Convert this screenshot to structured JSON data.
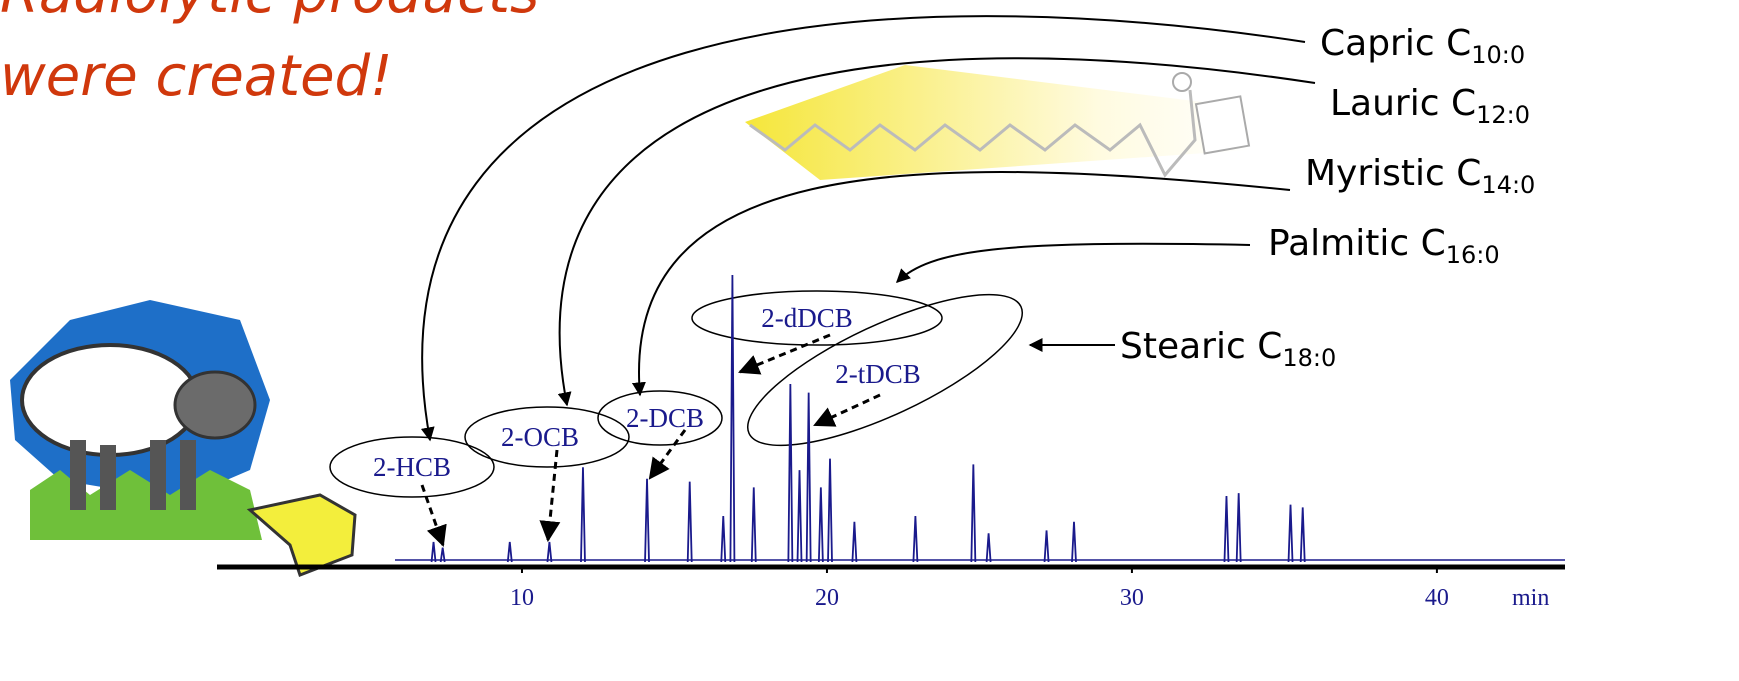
{
  "slide": {
    "title_lines": [
      "Radiolytic products",
      "were created!"
    ],
    "fatty_acids": [
      {
        "name": "Capric C",
        "subscript": "10:0"
      },
      {
        "name": "Lauric C",
        "subscript": "12:0"
      },
      {
        "name": "Myristic C",
        "subscript": "14:0"
      },
      {
        "name": "Palmitic C",
        "subscript": "16:0"
      },
      {
        "name": "Stearic C",
        "subscript": "18:0"
      }
    ],
    "products": [
      "2-HCB",
      "2-OCB",
      "2-DCB",
      "2-dDCB",
      "2-tDCB"
    ]
  },
  "chart_data": {
    "type": "chromatogram",
    "x_label": "min",
    "color": "#1a1a8c",
    "x": [
      7.1,
      7.4,
      9.6,
      10.9,
      12.0,
      14.1,
      15.5,
      16.6,
      16.9,
      17.6,
      18.8,
      19.1,
      19.4,
      19.8,
      20.1,
      20.9,
      22.9,
      24.8,
      25.3,
      27.2,
      28.1,
      33.1,
      33.5,
      35.2,
      35.6
    ],
    "values": [
      7,
      5,
      7,
      7,
      33,
      29,
      28,
      16,
      100,
      26,
      62,
      32,
      59,
      26,
      36,
      14,
      16,
      34,
      10,
      11,
      14,
      23,
      24,
      20,
      19
    ],
    "xlim": [
      0,
      44.2
    ],
    "xticks": [
      10,
      20,
      30,
      40
    ],
    "ylim": [
      0,
      100
    ]
  }
}
